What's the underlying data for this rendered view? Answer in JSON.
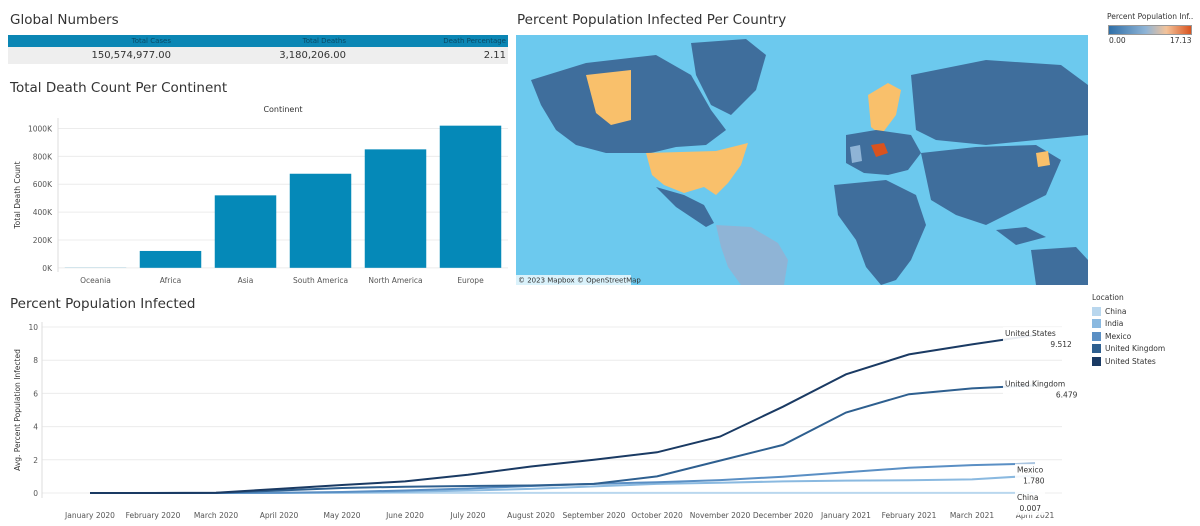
{
  "global_numbers": {
    "title": "Global Numbers",
    "headers": [
      "Total Cases",
      "Total Deaths",
      "Death Percentage"
    ],
    "values": [
      "150,574,977.00",
      "3,180,206.00",
      "2.11"
    ]
  },
  "map": {
    "title": "Percent Population Infected Per Country",
    "credit": "© 2023 Mapbox © OpenStreetMap",
    "legend": {
      "title": "Percent Population Inf..",
      "min": "0.00",
      "max": "17.13"
    },
    "colors": {
      "ocean": "#6cc9ee",
      "low": "#3f6e9c",
      "mid": "#8fb4d6",
      "high": "#f9c06b",
      "peak": "#d9531e"
    }
  },
  "chart_data": [
    {
      "type": "bar",
      "title": "Total Death Count Per Continent",
      "subtitle": "Continent",
      "ylabel": "Total Death Count",
      "categories": [
        "Oceania",
        "Africa",
        "Asia",
        "South America",
        "North America",
        "Europe"
      ],
      "values": [
        1000,
        121000,
        520000,
        675000,
        850000,
        1020000
      ],
      "yticks": [
        0,
        200000,
        400000,
        600000,
        800000,
        1000000
      ],
      "ytick_labels": [
        "0K",
        "200K",
        "400K",
        "600K",
        "800K",
        "1000K"
      ],
      "ylim": [
        -30000,
        1075000
      ],
      "color": "#0589b8",
      "grid": true
    },
    {
      "type": "line",
      "title": "Percent Population Infected",
      "ylabel": "Avg. Percent Population Infected",
      "x": [
        "January 2020",
        "February 2020",
        "March 2020",
        "April 2020",
        "May 2020",
        "June 2020",
        "July 2020",
        "August 2020",
        "September 2020",
        "October 2020",
        "November 2020",
        "December 2020",
        "January 2021",
        "February 2021",
        "March 2021",
        "April 2021"
      ],
      "ylim": [
        -0.3,
        10.3
      ],
      "yticks": [
        0,
        2,
        4,
        6,
        8,
        10
      ],
      "grid": true,
      "legend_title": "Location",
      "legend": [
        "China",
        "India",
        "Mexico",
        "United Kingdom",
        "United States"
      ],
      "series": [
        {
          "name": "China",
          "color": "#b9d7ee",
          "values": [
            0.0,
            0.005,
            0.006,
            0.006,
            0.006,
            0.006,
            0.006,
            0.006,
            0.006,
            0.006,
            0.006,
            0.006,
            0.007,
            0.007,
            0.007,
            0.007
          ]
        },
        {
          "name": "India",
          "color": "#8ab9e0",
          "values": [
            0.0,
            0.0,
            0.0,
            0.01,
            0.03,
            0.07,
            0.15,
            0.25,
            0.4,
            0.55,
            0.62,
            0.7,
            0.75,
            0.77,
            0.82,
            1.05
          ]
        },
        {
          "name": "Mexico",
          "color": "#5a8fc4",
          "values": [
            0.0,
            0.0,
            0.0,
            0.02,
            0.06,
            0.15,
            0.27,
            0.42,
            0.55,
            0.65,
            0.78,
            0.98,
            1.25,
            1.52,
            1.68,
            1.78
          ]
        },
        {
          "name": "United Kingdom",
          "color": "#2e5f8f",
          "values": [
            0.0,
            0.0,
            0.01,
            0.15,
            0.3,
            0.38,
            0.42,
            0.45,
            0.55,
            1.0,
            1.95,
            2.9,
            4.85,
            5.95,
            6.3,
            6.479
          ]
        },
        {
          "name": "United States",
          "color": "#1a3a63",
          "values": [
            0.0,
            0.0,
            0.02,
            0.25,
            0.48,
            0.7,
            1.1,
            1.6,
            2.0,
            2.45,
            3.4,
            5.2,
            7.15,
            8.35,
            8.95,
            9.512
          ]
        }
      ],
      "end_labels": [
        {
          "series": "United States",
          "name": "United States",
          "value": "9.512"
        },
        {
          "series": "United Kingdom",
          "name": "United Kingdom",
          "value": "6.479"
        },
        {
          "series": "Mexico",
          "name": "Mexico",
          "value": "1.780"
        },
        {
          "series": "China",
          "name": "China",
          "value": "0.007"
        }
      ]
    }
  ]
}
